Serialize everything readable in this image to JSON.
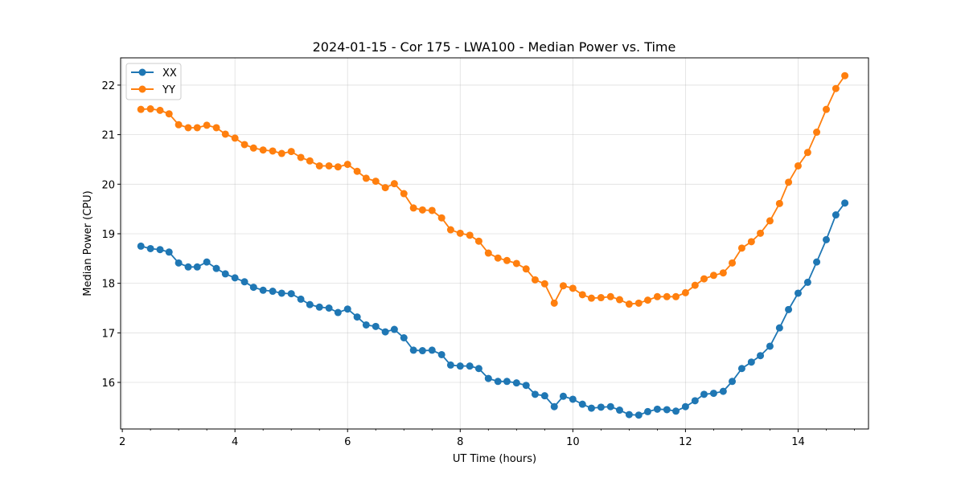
{
  "chart_data": {
    "type": "line",
    "title": "2024-01-15 - Cor 175 - LWA100 - Median Power vs. Time",
    "xlabel": "UT Time (hours)",
    "ylabel": "Median Power (CPU)",
    "xlim": [
      1.97,
      15.25
    ],
    "ylim": [
      15.06,
      22.55
    ],
    "xticks": [
      2,
      4,
      6,
      8,
      10,
      12,
      14
    ],
    "xtick_labels": [
      "2",
      "4",
      "6",
      "8",
      "10",
      "12",
      "14"
    ],
    "yticks": [
      16,
      17,
      18,
      19,
      20,
      21,
      22
    ],
    "ytick_labels": [
      "16",
      "17",
      "18",
      "19",
      "20",
      "21",
      "22"
    ],
    "grid": true,
    "legend": "top-left",
    "x": [
      2.33,
      2.5,
      2.67,
      2.83,
      3.0,
      3.17,
      3.33,
      3.5,
      3.67,
      3.83,
      4.0,
      4.17,
      4.33,
      4.5,
      4.67,
      4.83,
      5.0,
      5.17,
      5.33,
      5.5,
      5.67,
      5.83,
      6.0,
      6.17,
      6.33,
      6.5,
      6.67,
      6.83,
      7.0,
      7.17,
      7.33,
      7.5,
      7.67,
      7.83,
      8.0,
      8.17,
      8.33,
      8.5,
      8.67,
      8.83,
      9.0,
      9.17,
      9.33,
      9.5,
      9.67,
      9.83,
      10.0,
      10.17,
      10.33,
      10.5,
      10.67,
      10.83,
      11.0,
      11.17,
      11.33,
      11.5,
      11.67,
      11.83,
      12.0,
      12.17,
      12.33,
      12.5,
      12.67,
      12.83,
      13.0,
      13.17,
      13.33,
      13.5,
      13.67,
      13.83,
      14.0,
      14.17,
      14.33,
      14.5,
      14.67,
      14.83
    ],
    "series": [
      {
        "name": "XX",
        "color": "#1f77b4",
        "values": [
          18.75,
          18.7,
          18.68,
          18.63,
          18.41,
          18.33,
          18.33,
          18.43,
          18.3,
          18.19,
          18.11,
          18.03,
          17.92,
          17.86,
          17.84,
          17.8,
          17.79,
          17.68,
          17.57,
          17.52,
          17.5,
          17.41,
          17.48,
          17.32,
          17.16,
          17.13,
          17.02,
          17.07,
          16.9,
          16.65,
          16.64,
          16.65,
          16.56,
          16.35,
          16.33,
          16.33,
          16.28,
          16.08,
          16.02,
          16.02,
          15.99,
          15.94,
          15.76,
          15.73,
          15.51,
          15.72,
          15.66,
          15.56,
          15.48,
          15.5,
          15.51,
          15.44,
          15.35,
          15.34,
          15.41,
          15.46,
          15.45,
          15.42,
          15.51,
          15.63,
          15.76,
          15.78,
          15.82,
          16.02,
          16.28,
          16.41,
          16.54,
          16.73,
          17.1,
          17.47,
          17.8,
          18.02,
          18.43,
          18.88,
          19.38,
          19.62
        ]
      },
      {
        "name": "YY",
        "color": "#ff7f0e",
        "values": [
          21.51,
          21.52,
          21.49,
          21.42,
          21.2,
          21.14,
          21.14,
          21.19,
          21.14,
          21.01,
          20.93,
          20.8,
          20.73,
          20.69,
          20.67,
          20.62,
          20.66,
          20.54,
          20.47,
          20.37,
          20.37,
          20.35,
          20.4,
          20.26,
          20.12,
          20.06,
          19.93,
          20.01,
          19.81,
          19.52,
          19.48,
          19.47,
          19.32,
          19.08,
          19.01,
          18.97,
          18.85,
          18.61,
          18.51,
          18.46,
          18.4,
          18.29,
          18.07,
          17.99,
          17.6,
          17.95,
          17.9,
          17.77,
          17.7,
          17.71,
          17.73,
          17.67,
          17.58,
          17.6,
          17.66,
          17.73,
          17.73,
          17.73,
          17.81,
          17.96,
          18.09,
          18.16,
          18.21,
          18.41,
          18.71,
          18.84,
          19.01,
          19.26,
          19.61,
          20.04,
          20.37,
          20.64,
          21.05,
          21.51,
          21.93,
          22.19
        ]
      }
    ]
  }
}
